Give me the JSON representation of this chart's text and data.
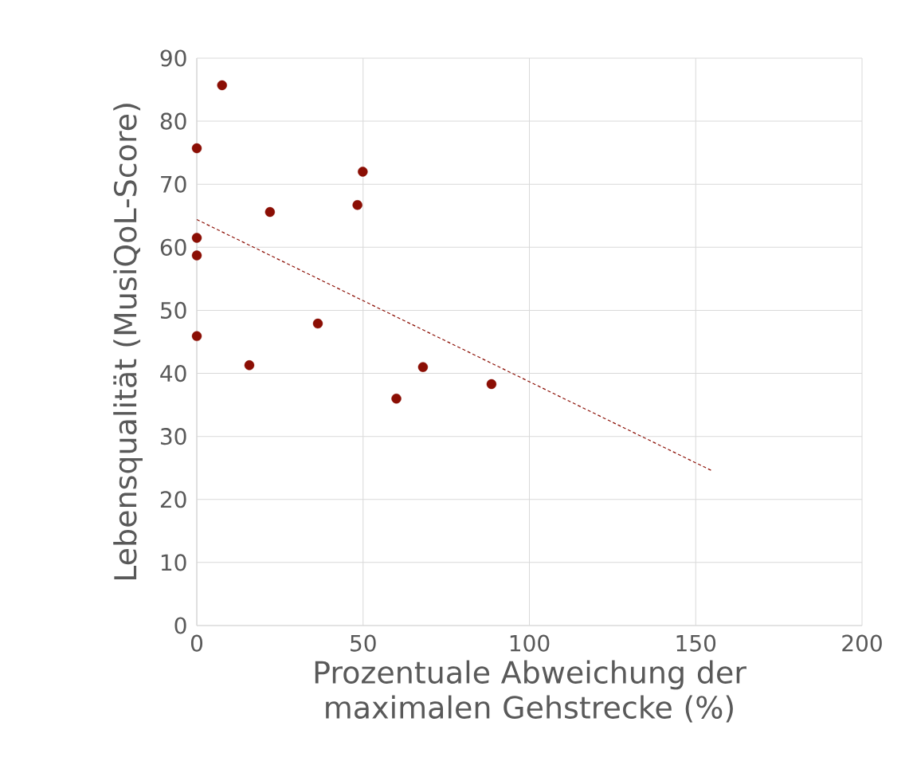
{
  "chart_data": {
    "type": "scatter",
    "xlabel": "Prozentuale Abweichung der maximalen Gehstrecke (%)",
    "ylabel": "Lebensqualität (MusiQoL-Score)",
    "series": [
      {
        "color": "#8b0e04",
        "marker": "circle",
        "x": [
          7.6,
          0,
          0,
          0,
          0,
          15.8,
          22,
          36.4,
          48.3,
          49.9,
          60,
          68,
          88.6
        ],
        "values": [
          85.7,
          75.7,
          61.5,
          58.7,
          45.9,
          41.3,
          65.6,
          47.9,
          66.7,
          72.0,
          36.0,
          41.0,
          38.3
        ]
      },
      {
        "type": "line",
        "color": "#8b0e04",
        "line_style": "dashed",
        "marker": "none",
        "x": [
          0,
          155.1
        ],
        "values": [
          64.4,
          24.5
        ]
      }
    ],
    "xlim": [
      0,
      200
    ],
    "ylim": [
      0,
      90
    ],
    "xticks": [
      0,
      50,
      100,
      150,
      200
    ],
    "yticks": [
      0,
      10,
      20,
      30,
      40,
      50,
      60,
      70,
      80,
      90
    ],
    "grid": true
  }
}
